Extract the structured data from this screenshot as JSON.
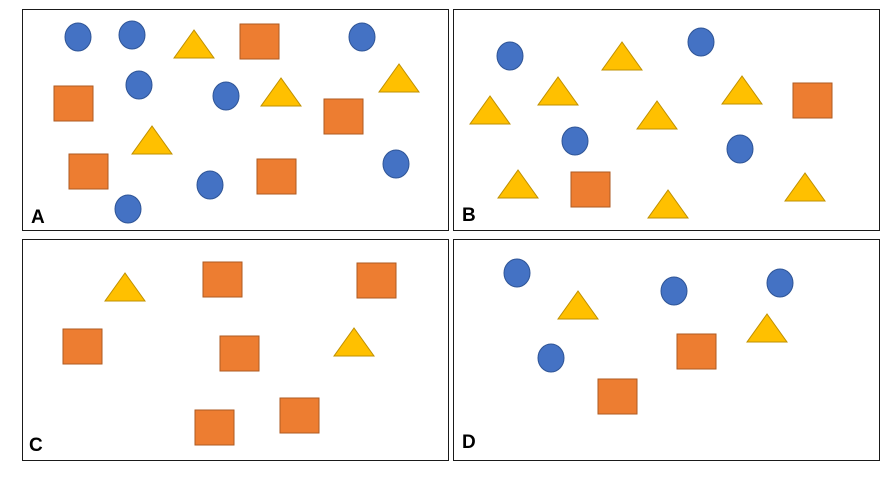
{
  "colors": {
    "circle_fill": "#4472C4",
    "circle_stroke": "#2F5597",
    "triangle_fill": "#FFC000",
    "triangle_stroke": "#BF9000",
    "square_fill": "#ED7D31",
    "square_stroke": "#AE5A21"
  },
  "panels": [
    {
      "id": "a",
      "label": "A"
    },
    {
      "id": "b",
      "label": "B"
    },
    {
      "id": "c",
      "label": "C"
    },
    {
      "id": "d",
      "label": "D"
    }
  ]
}
